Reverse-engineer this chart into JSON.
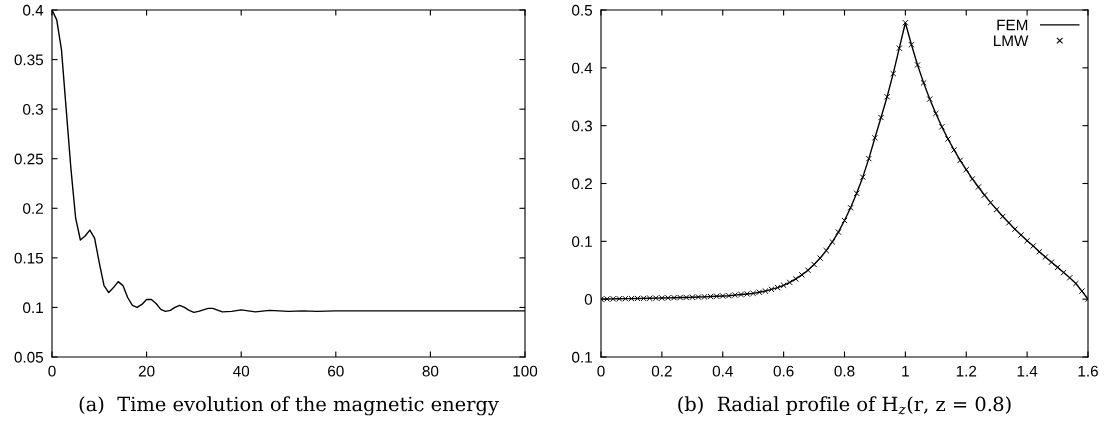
{
  "chart_data": [
    {
      "type": "line",
      "xlabel": "(a)  Time evolution of the magnetic energy",
      "xlim": [
        0,
        100
      ],
      "xticks": [
        0,
        20,
        40,
        60,
        80,
        100
      ],
      "ylim": [
        0.05,
        0.4
      ],
      "yticks": [
        0.05,
        0.1,
        0.15,
        0.2,
        0.25,
        0.3,
        0.35,
        0.4
      ],
      "grid": false,
      "legend": false,
      "series": [
        {
          "color": "#000000",
          "x": [
            0,
            1,
            2,
            3,
            4,
            5,
            6,
            7,
            8,
            9,
            10,
            11,
            12,
            13,
            14,
            15,
            16,
            17,
            18,
            19,
            20,
            21,
            22,
            23,
            24,
            25,
            26,
            27,
            28,
            29,
            30,
            31,
            33,
            34,
            36,
            38,
            40,
            43,
            46,
            50,
            53,
            56,
            60,
            70,
            80,
            100
          ],
          "values": [
            0.4,
            0.39,
            0.36,
            0.3,
            0.24,
            0.19,
            0.168,
            0.172,
            0.178,
            0.17,
            0.145,
            0.122,
            0.115,
            0.12,
            0.126,
            0.122,
            0.11,
            0.102,
            0.1,
            0.103,
            0.108,
            0.108,
            0.104,
            0.098,
            0.096,
            0.097,
            0.1,
            0.102,
            0.1,
            0.097,
            0.095,
            0.096,
            0.099,
            0.099,
            0.0955,
            0.096,
            0.0975,
            0.0955,
            0.097,
            0.096,
            0.0965,
            0.096,
            0.0965,
            0.0965,
            0.0965,
            0.0965
          ]
        }
      ]
    },
    {
      "type": "line",
      "xlabel": "(b)  Radial profile of H$_{z}$(r, z = 0.8)",
      "xlim": [
        0,
        1.6
      ],
      "xticks": [
        0,
        0.2,
        0.4,
        0.6,
        0.8,
        1,
        1.2,
        1.4,
        1.6
      ],
      "ylim": [
        -0.1,
        0.5
      ],
      "yticks": [
        {
          "value": -0.1,
          "label": "0.1"
        },
        0,
        0.1,
        0.2,
        0.3,
        0.4,
        0.5
      ],
      "grid": false,
      "legend": "top right",
      "x": [
        0,
        0.02,
        0.04,
        0.06,
        0.08,
        0.1,
        0.12,
        0.14,
        0.16,
        0.18,
        0.2,
        0.22,
        0.24,
        0.26,
        0.28,
        0.3,
        0.32,
        0.34,
        0.36,
        0.38,
        0.4,
        0.42,
        0.44,
        0.46,
        0.48,
        0.5,
        0.52,
        0.54,
        0.56,
        0.58,
        0.6,
        0.62,
        0.64,
        0.66,
        0.68,
        0.7,
        0.72,
        0.74,
        0.76,
        0.78,
        0.8,
        0.82,
        0.84,
        0.86,
        0.88,
        0.9,
        0.92,
        0.94,
        0.96,
        0.98,
        1.0,
        1.02,
        1.04,
        1.06,
        1.08,
        1.1,
        1.12,
        1.14,
        1.16,
        1.18,
        1.2,
        1.22,
        1.24,
        1.26,
        1.28,
        1.3,
        1.32,
        1.34,
        1.36,
        1.38,
        1.4,
        1.42,
        1.44,
        1.46,
        1.48,
        1.5,
        1.52,
        1.54,
        1.56,
        1.58,
        1.6
      ],
      "series": [
        {
          "name": "FEM",
          "color": "#000000",
          "marker": "none",
          "values": [
            0,
            0.0003,
            0.0005,
            0.0007,
            0.0009,
            0.001,
            0.0012,
            0.0014,
            0.0016,
            0.0018,
            0.002,
            0.0022,
            0.0025,
            0.0028,
            0.003,
            0.0033,
            0.0037,
            0.004,
            0.0045,
            0.005,
            0.0055,
            0.006,
            0.007,
            0.008,
            0.009,
            0.01,
            0.012,
            0.014,
            0.017,
            0.02,
            0.024,
            0.029,
            0.035,
            0.042,
            0.05,
            0.06,
            0.071,
            0.084,
            0.099,
            0.116,
            0.136,
            0.158,
            0.183,
            0.211,
            0.243,
            0.279,
            0.314,
            0.35,
            0.39,
            0.434,
            0.478,
            0.44,
            0.405,
            0.374,
            0.346,
            0.321,
            0.298,
            0.277,
            0.258,
            0.24,
            0.224,
            0.208,
            0.194,
            0.18,
            0.167,
            0.155,
            0.143,
            0.132,
            0.121,
            0.111,
            0.101,
            0.092,
            0.082,
            0.073,
            0.064,
            0.055,
            0.046,
            0.037,
            0.027,
            0.014,
            0
          ]
        },
        {
          "name": "LMW",
          "color": "#000000",
          "type": "scatter",
          "marker": "cross",
          "values": [
            0,
            0.0003,
            0.0005,
            0.0007,
            0.0009,
            0.001,
            0.0012,
            0.0014,
            0.0016,
            0.0018,
            0.002,
            0.0022,
            0.0025,
            0.0028,
            0.003,
            0.0033,
            0.0037,
            0.004,
            0.0045,
            0.005,
            0.0055,
            0.006,
            0.007,
            0.008,
            0.009,
            0.01,
            0.012,
            0.014,
            0.017,
            0.02,
            0.024,
            0.029,
            0.035,
            0.042,
            0.05,
            0.06,
            0.071,
            0.084,
            0.099,
            0.116,
            0.136,
            0.158,
            0.183,
            0.211,
            0.243,
            0.279,
            0.314,
            0.35,
            0.39,
            0.434,
            0.478,
            0.44,
            0.405,
            0.374,
            0.346,
            0.321,
            0.298,
            0.277,
            0.258,
            0.24,
            0.224,
            0.208,
            0.194,
            0.18,
            0.167,
            0.155,
            0.143,
            0.132,
            0.121,
            0.111,
            0.101,
            0.092,
            0.082,
            0.073,
            0.064,
            0.055,
            0.046,
            0.037,
            0.027,
            0.014,
            0
          ]
        }
      ]
    }
  ]
}
